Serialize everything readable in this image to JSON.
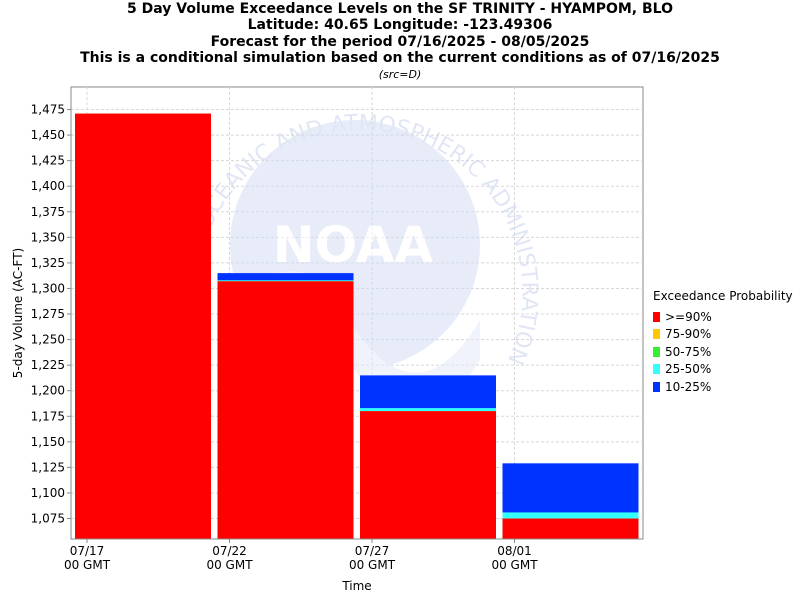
{
  "titles": [
    "5 Day Volume Exceedance Levels on the SF TRINITY - HYAMPOM, BLO",
    "Latitude: 40.65 Longitude: -123.49306",
    "Forecast for the period 07/16/2025 - 08/05/2025",
    "This is a conditional simulation based on the current conditions as of 07/16/2025"
  ],
  "subtitle": "(src=D)",
  "watermark": {
    "ring_text": "OCEANIC AND ATMOSPHERIC ADMINISTRATION",
    "logo_text": "NOAA"
  },
  "legend": {
    "title": "Exceedance Probability",
    "items": [
      {
        "label": ">=90%",
        "color": "#ff0000"
      },
      {
        "label": "75-90%",
        "color": "#ffc800"
      },
      {
        "label": "50-75%",
        "color": "#33ee33"
      },
      {
        "label": "25-50%",
        "color": "#33ffff"
      },
      {
        "label": "10-25%",
        "color": "#0033ff"
      }
    ]
  },
  "chart_data": {
    "type": "bar",
    "stacked": true,
    "title": "5 Day Volume Exceedance Levels on the SF TRINITY - HYAMPOM, BLO",
    "xlabel": "Time",
    "ylabel": "5-day Volume (AC-FT)",
    "ylim": [
      1055,
      1497
    ],
    "yticks": [
      1075,
      1100,
      1125,
      1150,
      1175,
      1200,
      1225,
      1250,
      1275,
      1300,
      1325,
      1350,
      1375,
      1400,
      1425,
      1450,
      1475
    ],
    "xticks": [
      {
        "label": "07/17",
        "sub": "00 GMT"
      },
      {
        "label": "07/22",
        "sub": "00 GMT"
      },
      {
        "label": "07/27",
        "sub": "00 GMT"
      },
      {
        "label": "08/01",
        "sub": "00 GMT"
      }
    ],
    "grid": true,
    "legend_position": "right",
    "bars": [
      {
        "period": "07/17 - 07/22",
        "levels": {
          ">=90%": 1471,
          "75-90%": 1471,
          "50-75%": 1471,
          "25-50%": 1471,
          "10-25%": 1471
        }
      },
      {
        "period": "07/22 - 07/27",
        "levels": {
          ">=90%": 1307,
          "75-90%": 1307,
          "50-75%": 1307,
          "25-50%": 1308,
          "10-25%": 1315
        }
      },
      {
        "period": "07/27 - 08/01",
        "levels": {
          ">=90%": 1180,
          "75-90%": 1180,
          "50-75%": 1180,
          "25-50%": 1183,
          "10-25%": 1215
        }
      },
      {
        "period": "08/01 - 08/05",
        "levels": {
          ">=90%": 1075,
          "75-90%": 1075,
          "50-75%": 1075,
          "25-50%": 1081,
          "10-25%": 1129
        }
      }
    ]
  }
}
